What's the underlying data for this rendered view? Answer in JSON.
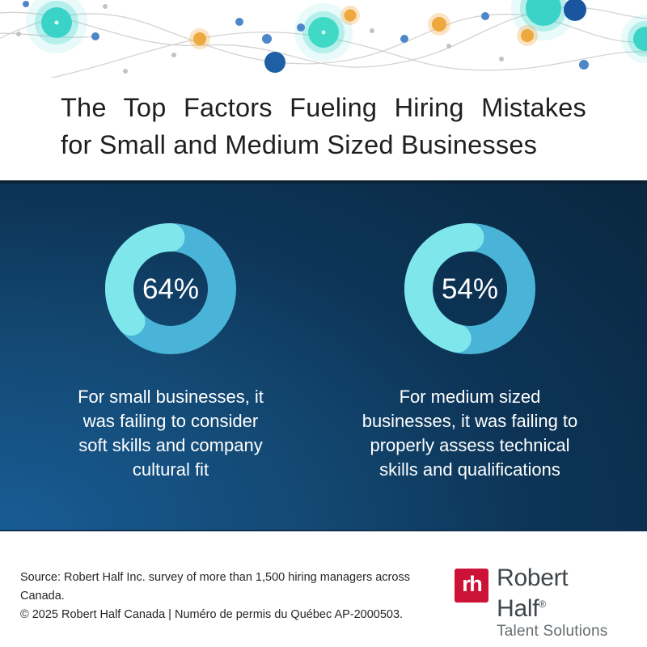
{
  "title": {
    "line1": "The Top Factors Fueling Hiring Mistakes",
    "line2": "for Small and Medium Sized Businesses"
  },
  "chart_data": [
    {
      "type": "donut",
      "label": "64%",
      "value": 64,
      "remainder": 36,
      "start": "top",
      "direction": "clockwise",
      "value_color": "#49B4D7",
      "remainder_color": "#7FE6EC",
      "caption": "For small businesses, it was failing to consider soft skills and company cultural fit",
      "caption_lines": [
        "For small businesses, it",
        "was failing to consider",
        "soft skills and company",
        "cultural fit"
      ]
    },
    {
      "type": "donut",
      "label": "54%",
      "value": 54,
      "remainder": 46,
      "start": "top",
      "direction": "clockwise",
      "value_color": "#49B4D7",
      "remainder_color": "#7FE6EC",
      "caption": "For medium sized businesses, it was failing to properly assess technical skills and qualifications",
      "caption_lines": [
        "For medium sized",
        "businesses, it was failing to",
        "properly assess technical",
        "skills and qualifications"
      ]
    }
  ],
  "colors": {
    "panel_gradient_bright": "#185C95",
    "panel_gradient_dark": "#092740",
    "donut_value": "#49B4D7",
    "donut_remainder": "#7FE6EC",
    "title_text": "#1F1F1F",
    "panel_text": "#FFFFFF"
  },
  "footer": {
    "source_line1": "Source: Robert Half Inc. survey of more than 1,500 hiring managers across Canada.",
    "source_line2": "© 2025 Robert Half Canada | Numéro de permis du Québec AP-2000503.",
    "logo": {
      "monogram": "rh",
      "brand": "Robert Half",
      "registered": "®",
      "tagline": "Talent Solutions",
      "brand_red": "#CC1236"
    }
  }
}
